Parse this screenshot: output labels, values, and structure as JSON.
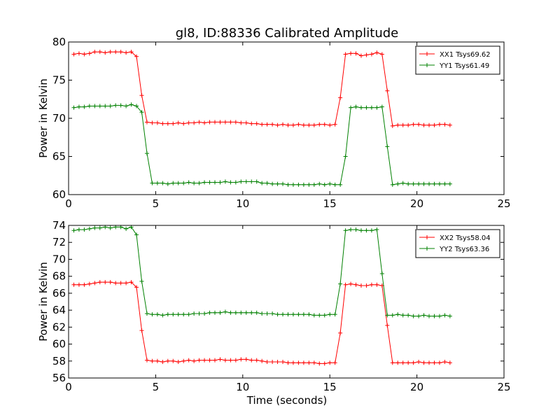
{
  "figure": {
    "title": "gl8, ID:88336 Calibrated Amplitude",
    "xlabel": "Time (seconds)"
  },
  "chart_data": [
    {
      "type": "line",
      "title": "gl8, ID:88336 Calibrated Amplitude",
      "xlabel": "",
      "ylabel": "Power in Kelvin",
      "xlim": [
        0,
        25
      ],
      "ylim": [
        60,
        80
      ],
      "xticks": [
        "0",
        "5",
        "10",
        "15",
        "20",
        "25"
      ],
      "yticks": [
        "60",
        "65",
        "70",
        "75",
        "80"
      ],
      "grid": false,
      "legend_position": "top-right",
      "x": [
        0.3,
        0.6,
        0.9,
        1.2,
        1.5,
        1.8,
        2.1,
        2.4,
        2.7,
        3.0,
        3.3,
        3.6,
        3.9,
        4.2,
        4.5,
        4.8,
        5.1,
        5.4,
        5.7,
        6.0,
        6.3,
        6.6,
        6.9,
        7.2,
        7.5,
        7.8,
        8.1,
        8.4,
        8.7,
        9.0,
        9.3,
        9.6,
        9.9,
        10.2,
        10.5,
        10.8,
        11.1,
        11.4,
        11.7,
        12.0,
        12.3,
        12.6,
        12.9,
        13.2,
        13.5,
        13.8,
        14.1,
        14.4,
        14.7,
        15.0,
        15.3,
        15.6,
        15.9,
        16.2,
        16.5,
        16.8,
        17.1,
        17.4,
        17.7,
        18.0,
        18.3,
        18.6,
        18.9,
        19.2,
        19.5,
        19.8,
        20.1,
        20.4,
        20.7,
        21.0,
        21.3,
        21.6,
        21.9
      ],
      "series": [
        {
          "name": "XX1 Tsys69.62",
          "color": "#ff0000",
          "values": [
            78.4,
            78.5,
            78.4,
            78.5,
            78.7,
            78.7,
            78.6,
            78.7,
            78.7,
            78.7,
            78.6,
            78.7,
            78.1,
            73.0,
            69.5,
            69.4,
            69.4,
            69.3,
            69.3,
            69.3,
            69.4,
            69.3,
            69.4,
            69.4,
            69.5,
            69.4,
            69.5,
            69.5,
            69.5,
            69.5,
            69.5,
            69.5,
            69.4,
            69.4,
            69.3,
            69.3,
            69.2,
            69.2,
            69.2,
            69.1,
            69.2,
            69.1,
            69.1,
            69.2,
            69.1,
            69.1,
            69.1,
            69.2,
            69.2,
            69.1,
            69.2,
            72.7,
            78.4,
            78.5,
            78.5,
            78.2,
            78.3,
            78.4,
            78.6,
            78.4,
            73.6,
            69.0,
            69.1,
            69.1,
            69.1,
            69.2,
            69.2,
            69.1,
            69.1,
            69.1,
            69.2,
            69.2,
            69.1
          ]
        },
        {
          "name": "YY1 Tsys61.49",
          "color": "#008000",
          "values": [
            71.4,
            71.5,
            71.5,
            71.6,
            71.6,
            71.6,
            71.6,
            71.6,
            71.7,
            71.7,
            71.6,
            71.8,
            71.6,
            70.8,
            65.4,
            61.5,
            61.5,
            61.5,
            61.4,
            61.5,
            61.5,
            61.5,
            61.6,
            61.5,
            61.5,
            61.6,
            61.6,
            61.6,
            61.6,
            61.7,
            61.6,
            61.6,
            61.7,
            61.7,
            61.7,
            61.7,
            61.5,
            61.5,
            61.4,
            61.4,
            61.4,
            61.3,
            61.3,
            61.3,
            61.3,
            61.3,
            61.3,
            61.4,
            61.3,
            61.4,
            61.3,
            61.3,
            65.0,
            71.4,
            71.5,
            71.4,
            71.4,
            71.4,
            71.4,
            71.5,
            66.3,
            61.3,
            61.4,
            61.5,
            61.4,
            61.4,
            61.4,
            61.4,
            61.4,
            61.4,
            61.4,
            61.4,
            61.4
          ]
        }
      ]
    },
    {
      "type": "line",
      "title": "",
      "xlabel": "Time (seconds)",
      "ylabel": "Power in Kelvin",
      "xlim": [
        0,
        25
      ],
      "ylim": [
        56,
        74
      ],
      "xticks": [
        "0",
        "5",
        "10",
        "15",
        "20",
        "25"
      ],
      "yticks": [
        "56",
        "58",
        "60",
        "62",
        "64",
        "66",
        "68",
        "70",
        "72",
        "74"
      ],
      "grid": false,
      "legend_position": "top-right",
      "x": [
        0.3,
        0.6,
        0.9,
        1.2,
        1.5,
        1.8,
        2.1,
        2.4,
        2.7,
        3.0,
        3.3,
        3.6,
        3.9,
        4.2,
        4.5,
        4.8,
        5.1,
        5.4,
        5.7,
        6.0,
        6.3,
        6.6,
        6.9,
        7.2,
        7.5,
        7.8,
        8.1,
        8.4,
        8.7,
        9.0,
        9.3,
        9.6,
        9.9,
        10.2,
        10.5,
        10.8,
        11.1,
        11.4,
        11.7,
        12.0,
        12.3,
        12.6,
        12.9,
        13.2,
        13.5,
        13.8,
        14.1,
        14.4,
        14.7,
        15.0,
        15.3,
        15.6,
        15.9,
        16.2,
        16.5,
        16.8,
        17.1,
        17.4,
        17.7,
        18.0,
        18.3,
        18.6,
        18.9,
        19.2,
        19.5,
        19.8,
        20.1,
        20.4,
        20.7,
        21.0,
        21.3,
        21.6,
        21.9
      ],
      "series": [
        {
          "name": "XX2 Tsys58.04",
          "color": "#ff0000",
          "values": [
            67.0,
            67.0,
            67.0,
            67.1,
            67.2,
            67.3,
            67.3,
            67.3,
            67.2,
            67.2,
            67.2,
            67.3,
            66.7,
            61.6,
            58.1,
            58.0,
            58.0,
            57.9,
            58.0,
            58.0,
            57.9,
            58.0,
            58.1,
            58.0,
            58.1,
            58.1,
            58.1,
            58.1,
            58.2,
            58.1,
            58.1,
            58.1,
            58.2,
            58.2,
            58.1,
            58.1,
            58.0,
            57.9,
            57.9,
            57.9,
            57.9,
            57.8,
            57.8,
            57.8,
            57.8,
            57.8,
            57.8,
            57.7,
            57.7,
            57.8,
            57.8,
            61.3,
            67.0,
            67.1,
            67.0,
            66.9,
            66.9,
            67.0,
            67.0,
            66.9,
            62.2,
            57.8,
            57.8,
            57.8,
            57.8,
            57.8,
            57.9,
            57.8,
            57.8,
            57.8,
            57.8,
            57.9,
            57.8
          ]
        },
        {
          "name": "YY2 Tsys63.36",
          "color": "#008000",
          "values": [
            73.4,
            73.5,
            73.5,
            73.6,
            73.7,
            73.7,
            73.8,
            73.7,
            73.8,
            73.8,
            73.6,
            73.8,
            72.9,
            67.4,
            63.6,
            63.5,
            63.5,
            63.4,
            63.5,
            63.5,
            63.5,
            63.5,
            63.5,
            63.6,
            63.6,
            63.6,
            63.7,
            63.7,
            63.7,
            63.8,
            63.7,
            63.7,
            63.7,
            63.7,
            63.7,
            63.7,
            63.6,
            63.6,
            63.6,
            63.5,
            63.5,
            63.5,
            63.5,
            63.5,
            63.5,
            63.5,
            63.4,
            63.4,
            63.4,
            63.5,
            63.5,
            67.1,
            73.4,
            73.5,
            73.5,
            73.4,
            73.4,
            73.4,
            73.5,
            68.3,
            63.4,
            63.4,
            63.5,
            63.4,
            63.4,
            63.3,
            63.3,
            63.4,
            63.3,
            63.3,
            63.3,
            63.4,
            63.3
          ]
        }
      ]
    }
  ]
}
